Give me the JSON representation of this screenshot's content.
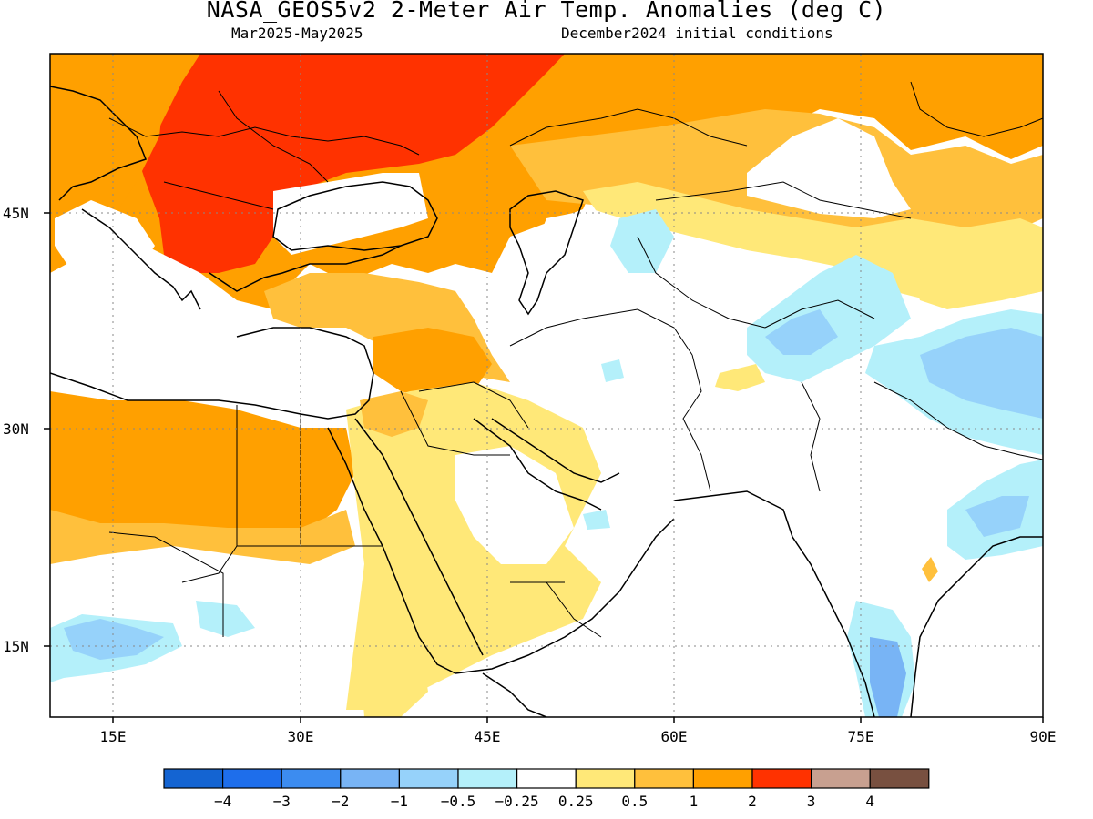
{
  "title": "NASA_GEOS5v2 2-Meter Air Temp. Anomalies (deg C)",
  "subtitle_left": "Mar2025-May2025",
  "subtitle_right": "December2024 initial conditions",
  "lat_labels": [
    "45N",
    "30N",
    "15N"
  ],
  "lon_labels": [
    "15E",
    "30E",
    "45E",
    "60E",
    "75E",
    "90E"
  ],
  "colorbar": {
    "colors": [
      "#1464d2",
      "#1e6eeb",
      "#3c8cf0",
      "#78b4f5",
      "#96d2fa",
      "#b4f0fa",
      "#ffffff",
      "#ffe878",
      "#ffc03c",
      "#ffa000",
      "#ff3200",
      "#c8a090",
      "#785040"
    ],
    "labels": [
      "-4",
      "-3",
      "-2",
      "-1",
      "-0.5",
      "-0.25",
      "0.25",
      "0.5",
      "1",
      "2",
      "3",
      "4"
    ]
  },
  "map_colors": {
    "gt3": "#ff3200",
    "2to3": "#ffa000",
    "1to2": "#ffc03c",
    "0.5to1": "#ffe878",
    "neg0.25": "#b4f0fa",
    "neg0.5": "#96d2fa",
    "neg1": "#78b4f5"
  }
}
